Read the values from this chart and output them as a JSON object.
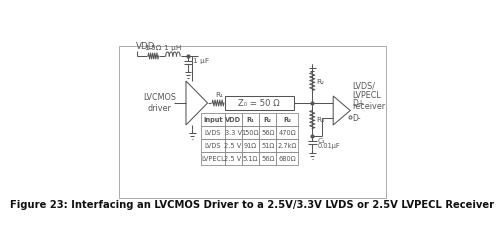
{
  "figure_title": "Figure 23: Interfacing an LVCMOS Driver to a 2.5V/3.3V LVDS or 2.5V LVPECL Receiver",
  "bg_color": "#ffffff",
  "line_color": "#555555",
  "title_fontsize": 7.2,
  "circuit_fontsize": 5.8,
  "table_data": {
    "headers": [
      "Input",
      "VDD",
      "R₁",
      "R₂",
      "R₃"
    ],
    "rows": [
      [
        "LVDS",
        "3.3 V",
        "150Ω",
        "56Ω",
        "470Ω"
      ],
      [
        "LVDS",
        "2.5 V",
        "91Ω",
        "51Ω",
        "2.7kΩ"
      ],
      [
        "LVPECL",
        "2.5 V",
        "5.1Ω",
        "56Ω",
        "680Ω"
      ]
    ]
  },
  "labels": {
    "vdd": "VDD",
    "r1_label": "1.5Ω",
    "l1_label": "1 μH",
    "c1_label": "1 μF",
    "r_label": "R₁",
    "zo_label": "Z₀ = 50 Ω",
    "lvcmos": "LVCMOS\ndriver",
    "lvds_receiver": "LVDS/\nLVPECL\nreceiver",
    "r2_label": "R₂",
    "r3_label": "R₃",
    "c2_label": "C₁",
    "c2_val": "0.01μF",
    "dplus": "D+",
    "dminus": "D-"
  }
}
